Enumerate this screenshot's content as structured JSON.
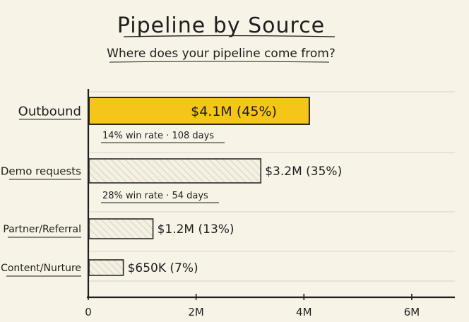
{
  "chart_data": {
    "type": "bar",
    "orientation": "horizontal",
    "title": "Pipeline by Source",
    "subtitle": "Where does your pipeline come from?",
    "categories": [
      "Outbound",
      "Demo requests",
      "Partner/Referral",
      "Content/Nurture"
    ],
    "values": [
      4100000,
      3200000,
      1200000,
      650000
    ],
    "value_labels": [
      "$4.1M (45%)",
      "$3.2M (35%)",
      "$1.2M (13%)",
      "$650K (7%)"
    ],
    "annotations": [
      "14% win rate · 108 days",
      "28% win rate · 54 days",
      "",
      ""
    ],
    "highlight_color": "#f5c518",
    "bar_outline_color": "#2a2a2a",
    "hatch_color": "#c9c2b0",
    "x_ticks": [
      0,
      2000000,
      4000000,
      6000000
    ],
    "x_tick_labels": [
      "0",
      "2M",
      "4M",
      "6M"
    ],
    "xlim": [
      0,
      6800000
    ],
    "grid": true
  }
}
